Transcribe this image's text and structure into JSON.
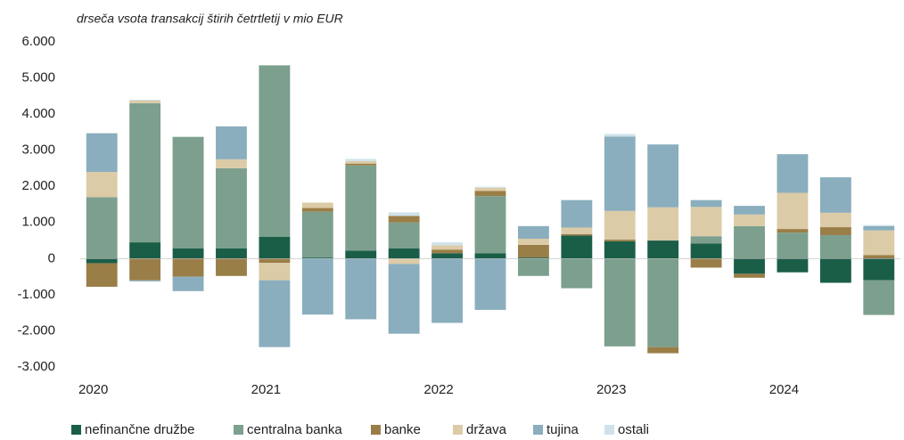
{
  "chart_data": {
    "type": "stacked_bar",
    "subtitle": "drseča vsota transakcij štirih četrtletij v mio EUR",
    "categories": [
      "2020",
      null,
      null,
      null,
      "2021",
      null,
      null,
      null,
      "2022",
      null,
      null,
      null,
      "2023",
      null,
      null,
      null,
      "2024",
      null,
      null
    ],
    "series": [
      {
        "name": "nefinančne družbe",
        "color": "#1b5e48",
        "values": [
          -130,
          450,
          280,
          280,
          600,
          30,
          220,
          280,
          150,
          150,
          30,
          640,
          480,
          500,
          420,
          -420,
          -380,
          -670,
          -600
        ]
      },
      {
        "name": "centralna banka",
        "color": "#7c9f8e",
        "values": [
          1700,
          3850,
          3090,
          2220,
          4750,
          1270,
          2360,
          720,
          0,
          1580,
          -480,
          -820,
          -2430,
          -2450,
          200,
          900,
          720,
          650,
          -960
        ]
      },
      {
        "name": "banke",
        "color": "#9a7e47",
        "values": [
          -650,
          -600,
          -500,
          -480,
          -120,
          100,
          50,
          180,
          100,
          140,
          350,
          40,
          50,
          -170,
          -250,
          -110,
          100,
          220,
          100
        ]
      },
      {
        "name": "država",
        "color": "#dccba7",
        "values": [
          700,
          80,
          0,
          250,
          -480,
          150,
          70,
          -150,
          120,
          90,
          170,
          180,
          790,
          920,
          810,
          320,
          1000,
          400,
          680
        ]
      },
      {
        "name": "tujina",
        "color": "#8aaebd",
        "values": [
          1070,
          -30,
          -400,
          910,
          -1850,
          -1550,
          -1680,
          -1930,
          -1780,
          -1420,
          350,
          760,
          2060,
          1740,
          190,
          240,
          1070,
          980,
          120
        ]
      },
      {
        "name": "ostali",
        "color": "#cfe2ea",
        "values": [
          0,
          20,
          0,
          0,
          0,
          0,
          60,
          100,
          80,
          30,
          0,
          0,
          70,
          0,
          0,
          0,
          0,
          0,
          30
        ]
      }
    ],
    "ylim": [
      -3000,
      6000
    ],
    "yticks": [
      {
        "value": -3000,
        "label": "-3.000"
      },
      {
        "value": -2000,
        "label": "-2.000"
      },
      {
        "value": -1000,
        "label": "-1.000"
      },
      0,
      {
        "value": 1000,
        "label": "1.000"
      },
      {
        "value": 2000,
        "label": "2.000"
      },
      {
        "value": 3000,
        "label": "3.000"
      },
      {
        "value": 4000,
        "label": "4.000"
      },
      {
        "value": 5000,
        "label": "5.000"
      },
      {
        "value": 6000,
        "label": "6.000"
      }
    ],
    "legend": "bottom"
  }
}
